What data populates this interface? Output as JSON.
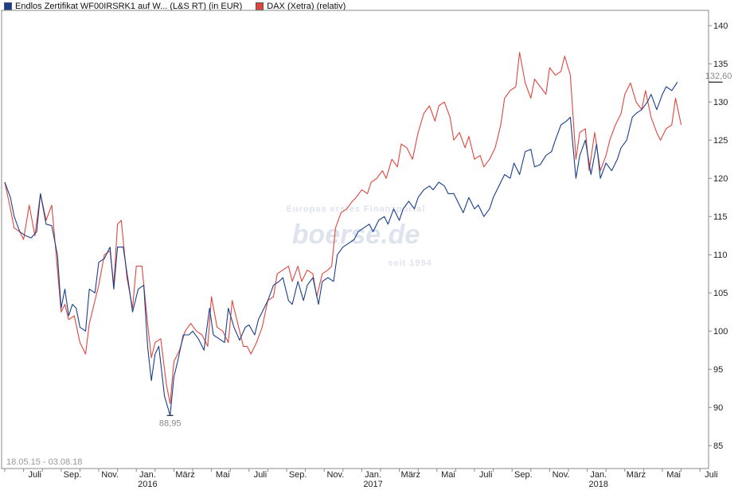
{
  "chart_data": {
    "type": "line",
    "legend": [
      {
        "name": "Endlos Zertifikat WF00IRSRK1 auf W... (L&S RT) (in EUR)",
        "color": "#1a3f8c"
      },
      {
        "name": "DAX (Xetra) (relativ)",
        "color": "#e0463e"
      }
    ],
    "ylim": [
      82,
      142
    ],
    "y_ticks": [
      85,
      90,
      95,
      100,
      105,
      110,
      115,
      120,
      125,
      130,
      135,
      140
    ],
    "date_range_label": "18.05.15 - 03.08.18",
    "x_labels": [
      {
        "label": "Juli",
        "t": 1.6
      },
      {
        "label": "Sep.",
        "t": 3.6
      },
      {
        "label": "Nov.",
        "t": 5.6
      },
      {
        "label": "Jan.",
        "t": 7.6,
        "year": "2016"
      },
      {
        "label": "März",
        "t": 9.6
      },
      {
        "label": "Mai",
        "t": 11.6
      },
      {
        "label": "Juli",
        "t": 13.6
      },
      {
        "label": "Sep.",
        "t": 15.6
      },
      {
        "label": "Nov.",
        "t": 17.6
      },
      {
        "label": "Jan.",
        "t": 19.6,
        "year": "2017"
      },
      {
        "label": "März",
        "t": 21.6
      },
      {
        "label": "Mai",
        "t": 23.6
      },
      {
        "label": "Juli",
        "t": 25.6
      },
      {
        "label": "Sep.",
        "t": 27.6
      },
      {
        "label": "Nov.",
        "t": 29.6
      },
      {
        "label": "Jan.",
        "t": 31.6,
        "year": "2018"
      },
      {
        "label": "März",
        "t": 33.6
      },
      {
        "label": "Mai",
        "t": 35.6
      },
      {
        "label": "Juli",
        "t": 37.6
      }
    ],
    "annotations": {
      "low": {
        "label": "88,95",
        "t": 8.8,
        "value": 88.95
      },
      "last": {
        "label": "132,60",
        "t": 38.5,
        "value": 132.6
      }
    },
    "watermark": {
      "line1": "Europas erstes Finanzportal",
      "brand": "boerse.de",
      "line2": "seit 1994"
    },
    "series": [
      {
        "name": "Endlos Zertifikat WF00IRSRK1 auf W... (L&S RT) (in EUR)",
        "color": "#1a3f8c",
        "points": [
          [
            0.0,
            119.5
          ],
          [
            0.3,
            117.5
          ],
          [
            0.5,
            115
          ],
          [
            0.8,
            113
          ],
          [
            1.1,
            112.5
          ],
          [
            1.4,
            112.2
          ],
          [
            1.7,
            113
          ],
          [
            1.9,
            118
          ],
          [
            2.2,
            114
          ],
          [
            2.5,
            113.8
          ],
          [
            2.8,
            110
          ],
          [
            3.0,
            103
          ],
          [
            3.2,
            105.5
          ],
          [
            3.4,
            102
          ],
          [
            3.6,
            103.5
          ],
          [
            3.8,
            103
          ],
          [
            4.0,
            100.5
          ],
          [
            4.3,
            100
          ],
          [
            4.5,
            105.5
          ],
          [
            4.8,
            105
          ],
          [
            5.0,
            109
          ],
          [
            5.3,
            109.5
          ],
          [
            5.6,
            111
          ],
          [
            5.8,
            105.5
          ],
          [
            6.0,
            111
          ],
          [
            6.3,
            111
          ],
          [
            6.6,
            106
          ],
          [
            6.8,
            102.5
          ],
          [
            7.1,
            105.5
          ],
          [
            7.4,
            106
          ],
          [
            7.6,
            98
          ],
          [
            7.8,
            93.5
          ],
          [
            8.0,
            97
          ],
          [
            8.2,
            98
          ],
          [
            8.5,
            91.5
          ],
          [
            8.8,
            88.95
          ],
          [
            9.0,
            94
          ],
          [
            9.2,
            96
          ],
          [
            9.5,
            99.5
          ],
          [
            9.8,
            99.5
          ],
          [
            10.0,
            100
          ],
          [
            10.3,
            99
          ],
          [
            10.6,
            97.5
          ],
          [
            10.9,
            103
          ],
          [
            11.1,
            99.5
          ],
          [
            11.4,
            99
          ],
          [
            11.7,
            98.5
          ],
          [
            11.9,
            103
          ],
          [
            12.2,
            100.5
          ],
          [
            12.5,
            98.8
          ],
          [
            12.8,
            100.5
          ],
          [
            13.0,
            100.8
          ],
          [
            13.3,
            99.5
          ],
          [
            13.5,
            101.5
          ],
          [
            13.8,
            103
          ],
          [
            14.0,
            104
          ],
          [
            14.3,
            106
          ],
          [
            14.6,
            106.5
          ],
          [
            14.8,
            107
          ],
          [
            15.1,
            104
          ],
          [
            15.3,
            103.5
          ],
          [
            15.6,
            106.5
          ],
          [
            15.9,
            104
          ],
          [
            16.1,
            106
          ],
          [
            16.4,
            107
          ],
          [
            16.7,
            103.5
          ],
          [
            16.9,
            106.5
          ],
          [
            17.2,
            107
          ],
          [
            17.5,
            106.5
          ],
          [
            17.7,
            110
          ],
          [
            18.0,
            111
          ],
          [
            18.3,
            111.5
          ],
          [
            18.6,
            112
          ],
          [
            18.8,
            113
          ],
          [
            19.1,
            113.5
          ],
          [
            19.4,
            114
          ],
          [
            19.6,
            113
          ],
          [
            19.9,
            114.5
          ],
          [
            20.2,
            115
          ],
          [
            20.4,
            114
          ],
          [
            20.7,
            116
          ],
          [
            21.0,
            114.5
          ],
          [
            21.2,
            116
          ],
          [
            21.5,
            117
          ],
          [
            21.8,
            116
          ],
          [
            22.0,
            117.5
          ],
          [
            22.3,
            118.5
          ],
          [
            22.6,
            119
          ],
          [
            22.8,
            118.5
          ],
          [
            23.1,
            119.5
          ],
          [
            23.4,
            119
          ],
          [
            23.6,
            118
          ],
          [
            23.9,
            118
          ],
          [
            24.2,
            116.5
          ],
          [
            24.4,
            115.5
          ],
          [
            24.7,
            117.5
          ],
          [
            25.0,
            116
          ],
          [
            25.2,
            116.5
          ],
          [
            25.5,
            115
          ],
          [
            25.8,
            116
          ],
          [
            26.0,
            117.5
          ],
          [
            26.3,
            119
          ],
          [
            26.6,
            120.5
          ],
          [
            26.9,
            120
          ],
          [
            27.1,
            122
          ],
          [
            27.4,
            120.5
          ],
          [
            27.7,
            123.5
          ],
          [
            28.0,
            123.8
          ],
          [
            28.2,
            121.5
          ],
          [
            28.5,
            121.8
          ],
          [
            28.8,
            123
          ],
          [
            29.1,
            123.5
          ],
          [
            29.3,
            125
          ],
          [
            29.6,
            127
          ],
          [
            29.9,
            127.5
          ],
          [
            30.1,
            128
          ],
          [
            30.4,
            120
          ],
          [
            30.6,
            123
          ],
          [
            30.9,
            125
          ],
          [
            31.2,
            120.5
          ],
          [
            31.5,
            124.5
          ],
          [
            31.7,
            120
          ],
          [
            32.0,
            122
          ],
          [
            32.3,
            121
          ],
          [
            32.6,
            122.5
          ],
          [
            32.8,
            124
          ],
          [
            33.1,
            125
          ],
          [
            33.4,
            128
          ],
          [
            33.6,
            128.5
          ],
          [
            33.9,
            129
          ],
          [
            34.2,
            130
          ],
          [
            34.4,
            131
          ],
          [
            34.7,
            129
          ],
          [
            35.0,
            131
          ],
          [
            35.2,
            132
          ],
          [
            35.5,
            131.5
          ],
          [
            35.8,
            132.6
          ]
        ]
      },
      {
        "name": "DAX (Xetra) (relativ)",
        "color": "#e0463e",
        "points": [
          [
            0.0,
            119.5
          ],
          [
            0.3,
            116
          ],
          [
            0.5,
            113.5
          ],
          [
            0.8,
            113
          ],
          [
            1.0,
            112
          ],
          [
            1.3,
            116.5
          ],
          [
            1.6,
            112.5
          ],
          [
            1.9,
            118
          ],
          [
            2.2,
            114.5
          ],
          [
            2.5,
            116.5
          ],
          [
            2.7,
            111
          ],
          [
            3.0,
            102.5
          ],
          [
            3.2,
            103.5
          ],
          [
            3.4,
            101.5
          ],
          [
            3.7,
            102
          ],
          [
            4.0,
            98.5
          ],
          [
            4.3,
            97
          ],
          [
            4.5,
            101
          ],
          [
            4.8,
            104
          ],
          [
            5.0,
            106
          ],
          [
            5.3,
            110
          ],
          [
            5.6,
            110.5
          ],
          [
            5.8,
            106
          ],
          [
            6.0,
            114
          ],
          [
            6.2,
            114.5
          ],
          [
            6.5,
            107
          ],
          [
            6.8,
            103
          ],
          [
            7.0,
            108.5
          ],
          [
            7.3,
            108.5
          ],
          [
            7.6,
            101
          ],
          [
            7.8,
            96.5
          ],
          [
            8.0,
            98.5
          ],
          [
            8.3,
            99
          ],
          [
            8.6,
            93
          ],
          [
            8.8,
            90.5
          ],
          [
            9.0,
            96
          ],
          [
            9.3,
            97.5
          ],
          [
            9.6,
            100
          ],
          [
            9.9,
            101
          ],
          [
            10.2,
            100
          ],
          [
            10.5,
            99.5
          ],
          [
            10.8,
            98
          ],
          [
            11.0,
            104.5
          ],
          [
            11.3,
            100.5
          ],
          [
            11.6,
            100
          ],
          [
            11.9,
            98.5
          ],
          [
            12.1,
            104
          ],
          [
            12.4,
            101
          ],
          [
            12.7,
            98
          ],
          [
            12.9,
            98
          ],
          [
            13.1,
            97
          ],
          [
            13.4,
            98.5
          ],
          [
            13.7,
            100.5
          ],
          [
            14.0,
            104
          ],
          [
            14.3,
            104.5
          ],
          [
            14.5,
            107.5
          ],
          [
            14.8,
            108
          ],
          [
            15.1,
            108.5
          ],
          [
            15.3,
            106.5
          ],
          [
            15.6,
            108.5
          ],
          [
            15.8,
            106.5
          ],
          [
            16.1,
            108
          ],
          [
            16.4,
            107.5
          ],
          [
            16.6,
            104.5
          ],
          [
            16.9,
            107.5
          ],
          [
            17.2,
            108
          ],
          [
            17.4,
            108.5
          ],
          [
            17.6,
            113.5
          ],
          [
            17.9,
            115.5
          ],
          [
            18.2,
            116
          ],
          [
            18.5,
            117
          ],
          [
            18.7,
            117.5
          ],
          [
            19.0,
            118.5
          ],
          [
            19.3,
            118
          ],
          [
            19.5,
            119.5
          ],
          [
            19.8,
            120
          ],
          [
            20.1,
            121
          ],
          [
            20.3,
            120
          ],
          [
            20.6,
            122.5
          ],
          [
            20.9,
            121.5
          ],
          [
            21.1,
            124.5
          ],
          [
            21.4,
            124
          ],
          [
            21.7,
            122.5
          ],
          [
            22.0,
            126
          ],
          [
            22.3,
            128.5
          ],
          [
            22.6,
            129.5
          ],
          [
            22.9,
            127.5
          ],
          [
            23.1,
            129.5
          ],
          [
            23.4,
            130
          ],
          [
            23.7,
            128
          ],
          [
            23.9,
            125
          ],
          [
            24.2,
            126
          ],
          [
            24.5,
            124
          ],
          [
            24.7,
            125.5
          ],
          [
            25.0,
            122.5
          ],
          [
            25.3,
            123
          ],
          [
            25.5,
            121.5
          ],
          [
            25.8,
            122.5
          ],
          [
            26.1,
            124
          ],
          [
            26.4,
            127
          ],
          [
            26.6,
            130.5
          ],
          [
            26.9,
            131.5
          ],
          [
            27.2,
            132
          ],
          [
            27.4,
            136.5
          ],
          [
            27.7,
            132.5
          ],
          [
            28.0,
            130.5
          ],
          [
            28.2,
            133
          ],
          [
            28.5,
            132
          ],
          [
            28.8,
            131
          ],
          [
            29.0,
            134.5
          ],
          [
            29.3,
            133.5
          ],
          [
            29.6,
            134
          ],
          [
            29.8,
            136
          ],
          [
            30.1,
            133.5
          ],
          [
            30.4,
            122.5
          ],
          [
            30.6,
            126
          ],
          [
            30.9,
            126.5
          ],
          [
            31.1,
            121
          ],
          [
            31.4,
            126
          ],
          [
            31.7,
            121
          ],
          [
            32.0,
            123
          ],
          [
            32.2,
            125
          ],
          [
            32.5,
            127
          ],
          [
            32.8,
            128.5
          ],
          [
            33.0,
            131
          ],
          [
            33.3,
            132.5
          ],
          [
            33.6,
            130
          ],
          [
            33.9,
            129
          ],
          [
            34.1,
            131.5
          ],
          [
            34.4,
            128
          ],
          [
            34.7,
            126
          ],
          [
            34.9,
            125
          ],
          [
            35.2,
            126.5
          ],
          [
            35.5,
            127
          ],
          [
            35.7,
            130.5
          ],
          [
            36.0,
            127
          ]
        ]
      }
    ]
  }
}
